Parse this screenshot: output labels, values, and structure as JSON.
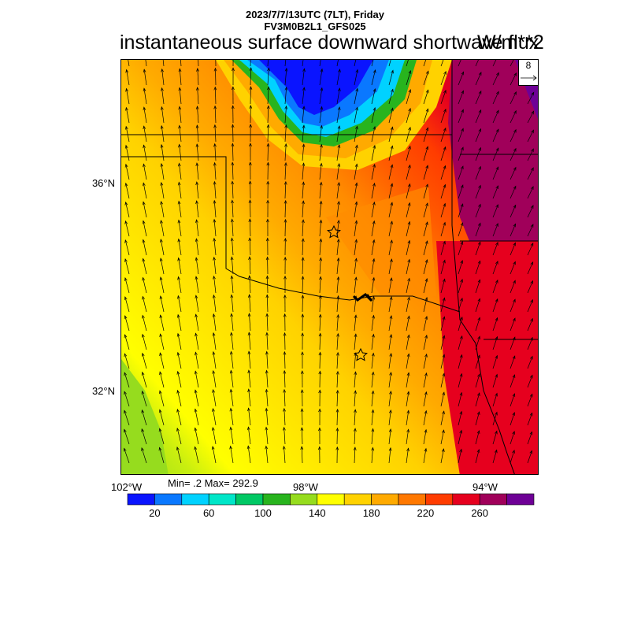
{
  "title": {
    "date_line": "2023/7/7/13UTC (7LT), Friday",
    "model_line": "FV3M0B2L1_GFS025",
    "variable": "instantaneous surface downward shortwave flux",
    "units": "W/m**2"
  },
  "map": {
    "lat_labels": [
      "36°N",
      "32°N"
    ],
    "lon_labels": [
      "102°W",
      "98°W",
      "94°W"
    ],
    "stats": "Min= .2 Max= 292.9",
    "vector_reference": "8",
    "markers": [
      "star",
      "star"
    ]
  },
  "colorbar": {
    "colors": [
      "#0a14ff",
      "#0a78ff",
      "#00d2ff",
      "#00e6c8",
      "#00c864",
      "#28b41e",
      "#96dc1e",
      "#ffff00",
      "#ffd200",
      "#ffaa00",
      "#ff7800",
      "#ff3c00",
      "#e6001e",
      "#a0005a",
      "#6e0096"
    ],
    "tick_labels": [
      "20",
      "60",
      "100",
      "140",
      "180",
      "220",
      "260"
    ]
  }
}
